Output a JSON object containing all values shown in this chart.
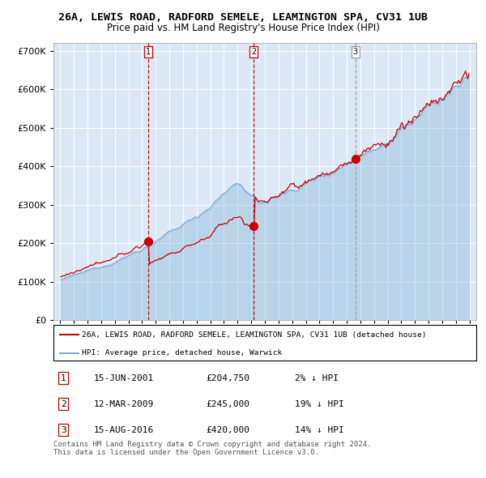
{
  "title": "26A, LEWIS ROAD, RADFORD SEMELE, LEAMINGTON SPA, CV31 1UB",
  "subtitle": "Price paid vs. HM Land Registry's House Price Index (HPI)",
  "hpi_label": "HPI: Average price, detached house, Warwick",
  "property_label": "26A, LEWIS ROAD, RADFORD SEMELE, LEAMINGTON SPA, CV31 1UB (detached house)",
  "transactions": [
    {
      "num": 1,
      "date": "15-JUN-2001",
      "price": 204750,
      "pct": "2%",
      "dir": "↓"
    },
    {
      "num": 2,
      "date": "12-MAR-2009",
      "price": 245000,
      "pct": "19%",
      "dir": "↓"
    },
    {
      "num": 3,
      "date": "15-AUG-2016",
      "price": 420000,
      "pct": "14%",
      "dir": "↓"
    }
  ],
  "transaction_dates_dec": [
    2001.458,
    2009.192,
    2016.625
  ],
  "transaction_prices": [
    204750,
    245000,
    420000
  ],
  "ylim": [
    0,
    720000
  ],
  "yticks": [
    0,
    100000,
    200000,
    300000,
    400000,
    500000,
    600000,
    700000
  ],
  "xlim_start": 1994.5,
  "xlim_end": 2025.5,
  "hpi_color": "#7ab0d4",
  "property_color": "#cc0000",
  "plot_bg": "#dce8f5",
  "grid_color": "#ffffff",
  "footer": "Contains HM Land Registry data © Crown copyright and database right 2024.\nThis data is licensed under the Open Government Licence v3.0."
}
